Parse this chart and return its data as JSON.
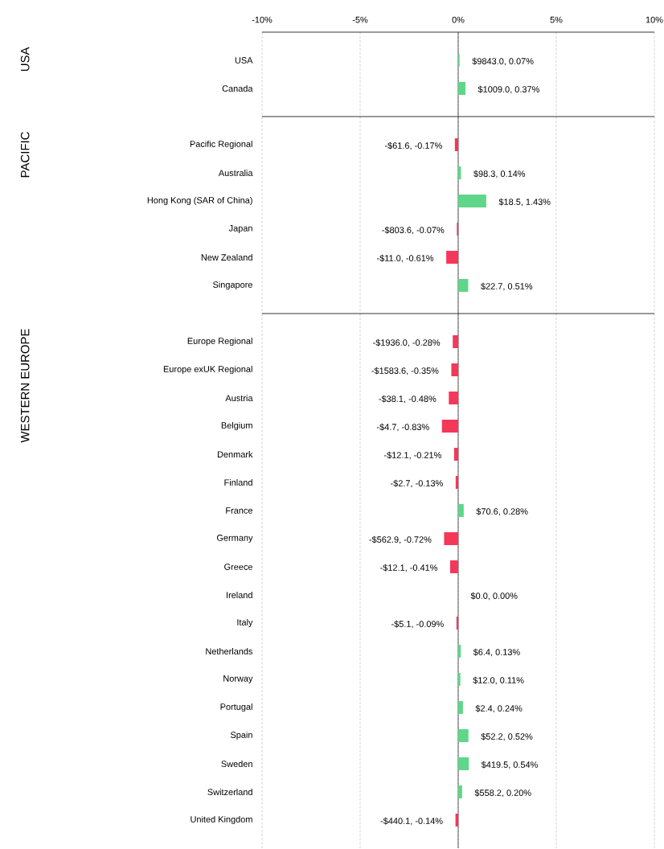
{
  "chart_data": [
    {
      "type": "bar",
      "orientation": "horizontal",
      "ylabel": "USA",
      "categories": [
        "USA",
        "Canada"
      ],
      "values": [
        0.07,
        0.37
      ],
      "colors": [
        "#5fd68a",
        "#5fd68a"
      ],
      "value_labels": [
        "$9843.0, 0.07%",
        "$1009.0, 0.37%"
      ],
      "xlim": [
        -10,
        10
      ],
      "xticks": [
        {
          "value": -10,
          "label": "-10%"
        },
        {
          "value": -5,
          "label": "-5%"
        },
        {
          "value": 0,
          "label": "0%"
        },
        {
          "value": 5,
          "label": "5%"
        },
        {
          "value": 10,
          "label": "10%"
        }
      ],
      "grid": "x",
      "ref_lines": [
        {
          "axis": "x",
          "value": 0,
          "color": "#333333"
        }
      ]
    },
    {
      "type": "bar",
      "orientation": "horizontal",
      "ylabel": "PACIFIC",
      "categories": [
        "Pacific Regional",
        "Australia",
        "Hong Kong (SAR of China)",
        "Japan",
        "New Zealand",
        "Singapore"
      ],
      "values": [
        -0.17,
        0.14,
        1.43,
        -0.07,
        -0.61,
        0.51
      ],
      "colors": [
        "#f5375a",
        "#5fd68a",
        "#5fd68a",
        "#f5375a",
        "#f5375a",
        "#5fd68a"
      ],
      "value_labels": [
        "-$61.6, -0.17%",
        "$98.3, 0.14%",
        "$18.5, 1.43%",
        "-$803.6, -0.07%",
        "-$11.0, -0.61%",
        "$22.7, 0.51%"
      ],
      "xlim": [
        -10,
        10
      ],
      "xticks": [
        {
          "value": -10,
          "label": null
        },
        {
          "value": -5,
          "label": null
        },
        {
          "value": 0,
          "label": null
        },
        {
          "value": 5,
          "label": null
        },
        {
          "value": 10,
          "label": null
        }
      ],
      "tick_labels": "y",
      "grid": "x",
      "ref_lines": [
        {
          "axis": "x",
          "value": 0,
          "color": "#333333"
        }
      ]
    },
    {
      "type": "bar",
      "orientation": "horizontal",
      "ylabel": "WESTERN EUROPE",
      "categories": [
        "Europe Regional",
        "Europe exUK Regional",
        "Austria",
        "Belgium",
        "Denmark",
        "Finland",
        "France",
        "Germany",
        "Greece",
        "Ireland",
        "Italy",
        "Netherlands",
        "Norway",
        "Portugal",
        "Spain",
        "Sweden",
        "Switzerland",
        "United Kingdom"
      ],
      "values": [
        -0.28,
        -0.35,
        -0.48,
        -0.83,
        -0.21,
        -0.13,
        0.28,
        -0.72,
        -0.41,
        0.0,
        -0.09,
        0.13,
        0.11,
        0.24,
        0.52,
        0.54,
        0.2,
        -0.14
      ],
      "colors": [
        "#f5375a",
        "#f5375a",
        "#f5375a",
        "#f5375a",
        "#f5375a",
        "#f5375a",
        "#5fd68a",
        "#f5375a",
        "#f5375a",
        "#5fd68a",
        "#f5375a",
        "#5fd68a",
        "#5fd68a",
        "#5fd68a",
        "#5fd68a",
        "#5fd68a",
        "#5fd68a",
        "#f5375a"
      ],
      "value_labels": [
        "-$1936.0, -0.28%",
        "-$1583.6, -0.35%",
        "-$38.1, -0.48%",
        "-$4.7, -0.83%",
        "-$12.1, -0.21%",
        "-$2.7, -0.13%",
        "$70.6, 0.28%",
        "-$562.9, -0.72%",
        "-$12.1, -0.41%",
        "$0.0, 0.00%",
        "-$5.1, -0.09%",
        "$6.4, 0.13%",
        "$12.0, 0.11%",
        "$2.4, 0.24%",
        "$52.2, 0.52%",
        "$419.5, 0.54%",
        "$558.2, 0.20%",
        "-$440.1, -0.14%"
      ],
      "xlim": [
        -10,
        10
      ],
      "xticks": [
        {
          "value": -10,
          "label": null
        },
        {
          "value": -5,
          "label": null
        },
        {
          "value": 0,
          "label": null
        },
        {
          "value": 5,
          "label": null
        },
        {
          "value": 10,
          "label": null
        }
      ],
      "tick_labels": "y",
      "grid": "x",
      "ref_lines": [
        {
          "axis": "x",
          "value": 0,
          "color": "#333333"
        }
      ]
    }
  ]
}
